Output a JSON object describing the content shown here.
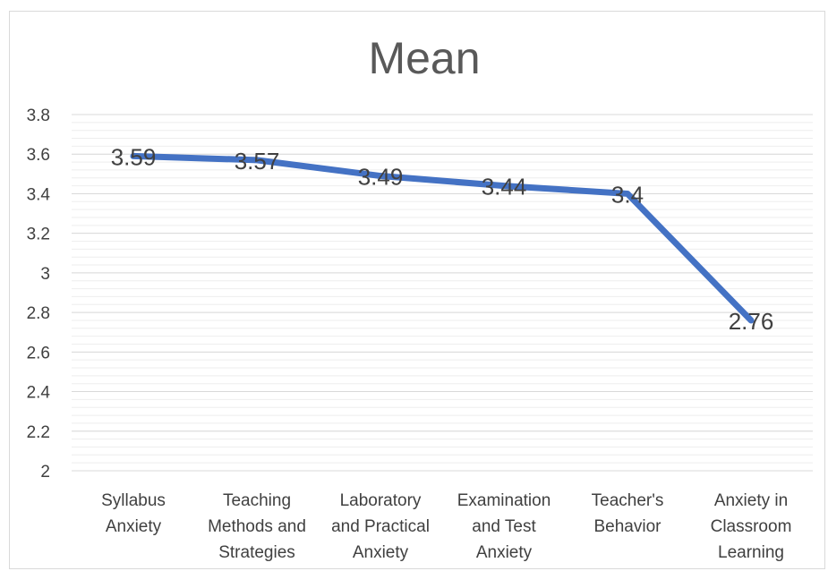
{
  "chart_data": {
    "type": "line",
    "title": "Mean",
    "xlabel": "",
    "ylabel": "",
    "ylim": [
      2,
      3.8
    ],
    "y_major_step": 0.2,
    "y_minor_step": 0.04,
    "grid": true,
    "legend": "none",
    "yticks": [
      "2",
      "2.2",
      "2.4",
      "2.6",
      "2.8",
      "3",
      "3.2",
      "3.4",
      "3.6",
      "3.8"
    ],
    "categories": [
      [
        "Syllabus",
        "Anxiety"
      ],
      [
        "Teaching",
        "Methods and",
        "Strategies"
      ],
      [
        "Laboratory",
        "and Practical",
        "Anxiety"
      ],
      [
        "Examination",
        "and Test",
        "Anxiety"
      ],
      [
        "Teacher's",
        "Behavior"
      ],
      [
        "Anxiety in",
        "Classroom",
        "Learning"
      ]
    ],
    "values": [
      3.59,
      3.57,
      3.49,
      3.44,
      3.4,
      2.76
    ],
    "data_labels": [
      "3.59",
      "3.57",
      "3.49",
      "3.44",
      "3.4",
      "2.76"
    ],
    "colors": {
      "line": "#4472c4",
      "major_grid": "#d9d9d9",
      "minor_grid": "#eeeeee",
      "text": "#404040",
      "title": "#595959"
    }
  }
}
